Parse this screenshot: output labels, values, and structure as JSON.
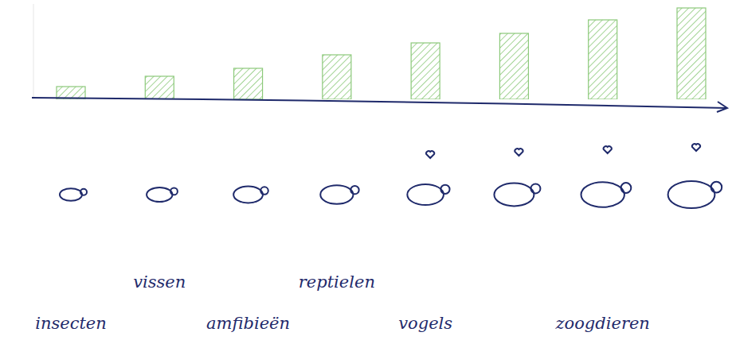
{
  "chart_data": {
    "type": "bar",
    "categories": [
      "insecten",
      "vissen",
      "amfibieën",
      "reptielen",
      "vogels",
      null,
      "zoogdieren",
      null
    ],
    "values": [
      16,
      29,
      39,
      56,
      71,
      83,
      100,
      115
    ],
    "color": "#8cc97a",
    "ylim": [
      0,
      120
    ],
    "tick_labels": "x",
    "grid": false
  }
}
